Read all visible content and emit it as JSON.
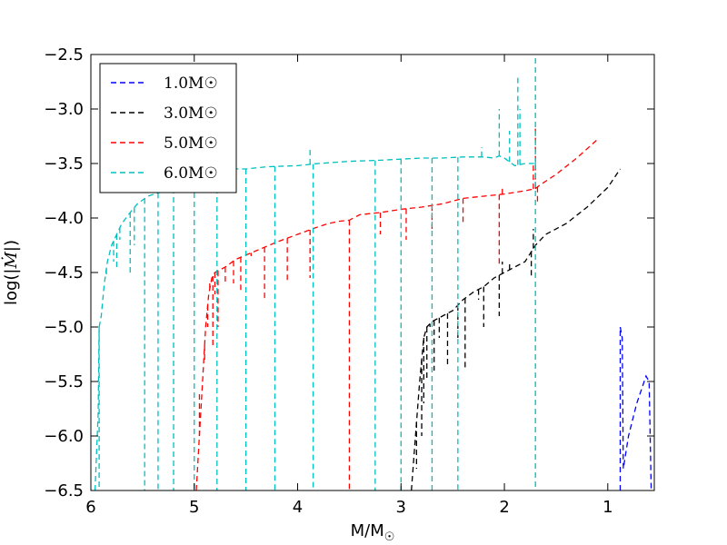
{
  "chart_data": {
    "type": "line",
    "title": "",
    "xlabel": "M/M☉",
    "ylabel": "log(|Ṁ|)",
    "xlim": [
      6,
      0.55
    ],
    "ylim": [
      -6.5,
      -2.5
    ],
    "x_ticks": [
      6,
      5,
      4,
      3,
      2,
      1
    ],
    "x_tick_labels": [
      "6",
      "5",
      "4",
      "3",
      "2",
      "1"
    ],
    "y_ticks": [
      -2.5,
      -3.0,
      -3.5,
      -4.0,
      -4.5,
      -5.0,
      -5.5,
      -6.0,
      -6.5
    ],
    "y_tick_labels": [
      "−2.5",
      "−3.0",
      "−3.5",
      "−4.0",
      "−4.5",
      "−5.0",
      "−5.5",
      "−6.0",
      "−6.5"
    ],
    "legend_position": "upper-left",
    "series": [
      {
        "name": "1.0M☉",
        "color": "#0000ff",
        "line": [
          [
            0.88,
            -6.5
          ],
          [
            0.88,
            -5.0
          ],
          [
            0.86,
            -5.1
          ],
          [
            0.85,
            -6.3
          ],
          [
            0.8,
            -6.0
          ],
          [
            0.72,
            -5.7
          ],
          [
            0.63,
            -5.45
          ],
          [
            0.6,
            -5.5
          ],
          [
            0.58,
            -6.5
          ]
        ],
        "spikes": []
      },
      {
        "name": "3.0M☉",
        "color": "#000000",
        "line": [
          [
            2.9,
            -6.5
          ],
          [
            2.86,
            -6.0
          ],
          [
            2.82,
            -5.5
          ],
          [
            2.78,
            -5.1
          ],
          [
            2.75,
            -5.0
          ],
          [
            2.7,
            -4.95
          ],
          [
            2.6,
            -4.9
          ],
          [
            2.5,
            -4.85
          ],
          [
            2.4,
            -4.75
          ],
          [
            2.3,
            -4.68
          ],
          [
            2.2,
            -4.63
          ],
          [
            2.1,
            -4.55
          ],
          [
            2.0,
            -4.5
          ],
          [
            1.9,
            -4.45
          ],
          [
            1.8,
            -4.4
          ],
          [
            1.7,
            -4.25
          ],
          [
            1.6,
            -4.15
          ],
          [
            1.4,
            -4.05
          ],
          [
            1.2,
            -3.9
          ],
          [
            1.0,
            -3.72
          ],
          [
            0.88,
            -3.55
          ]
        ],
        "spikes": [
          [
            2.85,
            -6.3
          ],
          [
            2.8,
            -6.0
          ],
          [
            2.78,
            -5.7
          ],
          [
            2.75,
            -5.5
          ],
          [
            2.72,
            -5.0
          ],
          [
            2.68,
            -5.4
          ],
          [
            2.63,
            -5.1
          ],
          [
            2.55,
            -5.35
          ],
          [
            2.45,
            -5.1
          ],
          [
            2.38,
            -5.4
          ],
          [
            2.25,
            -4.75
          ],
          [
            2.2,
            -5.0
          ],
          [
            2.05,
            -4.9
          ],
          [
            2.02,
            -4.4
          ],
          [
            1.95,
            -4.4
          ],
          [
            1.74,
            -4.55
          ],
          [
            1.72,
            -4.1
          ]
        ]
      },
      {
        "name": "5.0M☉",
        "color": "#ff0000",
        "line": [
          [
            4.98,
            -6.5
          ],
          [
            4.95,
            -6.0
          ],
          [
            4.92,
            -5.5
          ],
          [
            4.89,
            -5.0
          ],
          [
            4.86,
            -4.7
          ],
          [
            4.83,
            -4.55
          ],
          [
            4.8,
            -4.5
          ],
          [
            4.7,
            -4.45
          ],
          [
            4.6,
            -4.38
          ],
          [
            4.4,
            -4.3
          ],
          [
            4.2,
            -4.22
          ],
          [
            4.0,
            -4.15
          ],
          [
            3.8,
            -4.08
          ],
          [
            3.7,
            -4.05
          ],
          [
            3.6,
            -4.03
          ],
          [
            3.5,
            -4.02
          ],
          [
            3.4,
            -3.97
          ],
          [
            3.2,
            -3.95
          ],
          [
            3.0,
            -3.92
          ],
          [
            2.8,
            -3.9
          ],
          [
            2.6,
            -3.87
          ],
          [
            2.4,
            -3.82
          ],
          [
            2.2,
            -3.8
          ],
          [
            2.0,
            -3.78
          ],
          [
            1.8,
            -3.75
          ],
          [
            1.7,
            -3.73
          ],
          [
            1.66,
            -3.7
          ],
          [
            1.5,
            -3.6
          ],
          [
            1.3,
            -3.45
          ],
          [
            1.1,
            -3.28
          ]
        ],
        "spikes": [
          [
            4.95,
            -5.6
          ],
          [
            4.9,
            -5.3
          ],
          [
            4.87,
            -5.0
          ],
          [
            4.85,
            -4.6
          ],
          [
            4.82,
            -5.2
          ],
          [
            4.8,
            -4.7
          ],
          [
            4.77,
            -5.0
          ],
          [
            4.7,
            -4.6
          ],
          [
            4.62,
            -4.6
          ],
          [
            4.55,
            -4.67
          ],
          [
            4.45,
            -4.35
          ],
          [
            4.32,
            -4.75
          ],
          [
            4.1,
            -4.6
          ],
          [
            3.88,
            -4.55
          ],
          [
            3.5,
            -6.5
          ],
          [
            3.2,
            -4.15
          ],
          [
            2.95,
            -4.2
          ],
          [
            2.7,
            -4.1
          ],
          [
            2.4,
            -4.05
          ],
          [
            2.05,
            -4.45
          ],
          [
            2.02,
            -3.7
          ],
          [
            1.72,
            -3.5
          ],
          [
            1.7,
            -3.15
          ],
          [
            1.68,
            -3.85
          ]
        ]
      },
      {
        "name": "6.0M☉",
        "color": "#00bfbf",
        "line": [
          [
            5.96,
            -6.5
          ],
          [
            5.93,
            -5.8
          ],
          [
            5.92,
            -5.0
          ],
          [
            5.9,
            -4.9
          ],
          [
            5.87,
            -4.6
          ],
          [
            5.84,
            -4.4
          ],
          [
            5.8,
            -4.25
          ],
          [
            5.75,
            -4.15
          ],
          [
            5.7,
            -4.05
          ],
          [
            5.62,
            -3.95
          ],
          [
            5.55,
            -3.87
          ],
          [
            5.45,
            -3.8
          ],
          [
            5.35,
            -3.77
          ],
          [
            5.25,
            -3.75
          ],
          [
            5.15,
            -3.7
          ],
          [
            5.0,
            -3.6
          ],
          [
            4.9,
            -3.57
          ],
          [
            4.7,
            -3.55
          ],
          [
            4.5,
            -3.55
          ],
          [
            4.3,
            -3.53
          ],
          [
            4.0,
            -3.52
          ],
          [
            3.8,
            -3.5
          ],
          [
            3.5,
            -3.48
          ],
          [
            3.2,
            -3.47
          ],
          [
            3.0,
            -3.46
          ],
          [
            2.8,
            -3.45
          ],
          [
            2.6,
            -3.45
          ],
          [
            2.4,
            -3.44
          ],
          [
            2.2,
            -3.44
          ],
          [
            2.1,
            -3.45
          ],
          [
            2.05,
            -3.43
          ],
          [
            2.0,
            -3.45
          ],
          [
            1.9,
            -3.52
          ],
          [
            1.8,
            -3.5
          ],
          [
            1.7,
            -3.5
          ]
        ],
        "spikes": [
          [
            5.92,
            -6.5
          ],
          [
            5.85,
            -4.55
          ],
          [
            5.78,
            -4.4
          ],
          [
            5.75,
            -4.45
          ],
          [
            5.72,
            -4.2
          ],
          [
            5.62,
            -4.5
          ],
          [
            5.58,
            -4.25
          ],
          [
            5.48,
            -6.5
          ],
          [
            5.35,
            -6.5
          ],
          [
            5.2,
            -6.5
          ],
          [
            5.0,
            -6.5
          ],
          [
            4.78,
            -6.5
          ],
          [
            4.5,
            -6.5
          ],
          [
            4.22,
            -6.5
          ],
          [
            3.88,
            -3.35
          ],
          [
            3.85,
            -6.5
          ],
          [
            3.25,
            -6.5
          ],
          [
            3.0,
            -6.5
          ],
          [
            2.7,
            -6.5
          ],
          [
            2.45,
            -6.5
          ],
          [
            2.22,
            -3.35
          ],
          [
            2.05,
            -3.0
          ],
          [
            1.95,
            -3.2
          ],
          [
            1.87,
            -2.7
          ],
          [
            1.85,
            -3.0
          ],
          [
            1.7,
            -2.5
          ],
          [
            1.7,
            -6.5
          ]
        ]
      }
    ]
  }
}
